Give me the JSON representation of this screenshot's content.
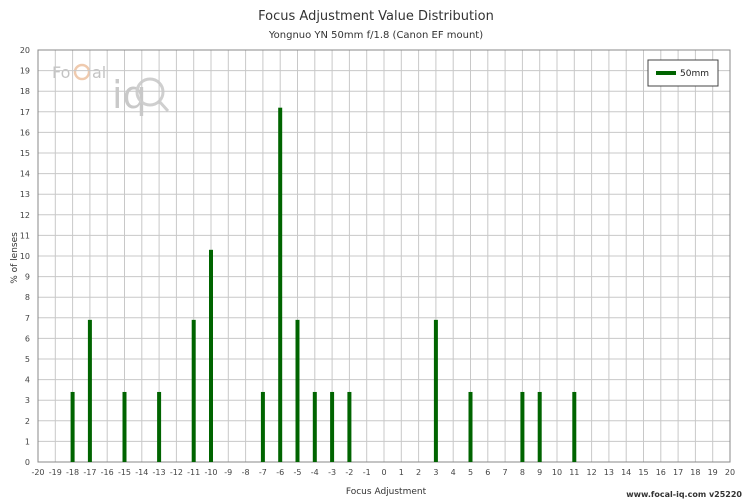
{
  "chart_data": {
    "type": "bar",
    "title": "Focus Adjustment Value Distribution",
    "subtitle": "Yongnuo YN 50mm f/1.8 (Canon EF mount)",
    "xlabel": "Focus Adjustment",
    "ylabel": "% of lenses",
    "xlim": [
      -20,
      20
    ],
    "ylim": [
      0,
      20
    ],
    "grid": true,
    "legend_position": "top-right",
    "series": [
      {
        "name": "50mm",
        "color": "#006400",
        "points": [
          {
            "x": -18,
            "y": 3.4
          },
          {
            "x": -17,
            "y": 6.9
          },
          {
            "x": -15,
            "y": 3.4
          },
          {
            "x": -13,
            "y": 3.4
          },
          {
            "x": -11,
            "y": 6.9
          },
          {
            "x": -10,
            "y": 10.3
          },
          {
            "x": -7,
            "y": 3.4
          },
          {
            "x": -6,
            "y": 17.2
          },
          {
            "x": -5,
            "y": 6.9
          },
          {
            "x": -4,
            "y": 3.4
          },
          {
            "x": -3,
            "y": 3.4
          },
          {
            "x": -2,
            "y": 3.4
          },
          {
            "x": 3,
            "y": 6.9
          },
          {
            "x": 5,
            "y": 3.4
          },
          {
            "x": 8,
            "y": 3.4
          },
          {
            "x": 9,
            "y": 3.4
          },
          {
            "x": 11,
            "y": 3.4
          }
        ]
      }
    ]
  },
  "logo": {
    "text_left": "Fo",
    "text_c": "C",
    "text_right": "al",
    "text_iq": "iq"
  },
  "footer": "www.focal-iq.com  v25220"
}
